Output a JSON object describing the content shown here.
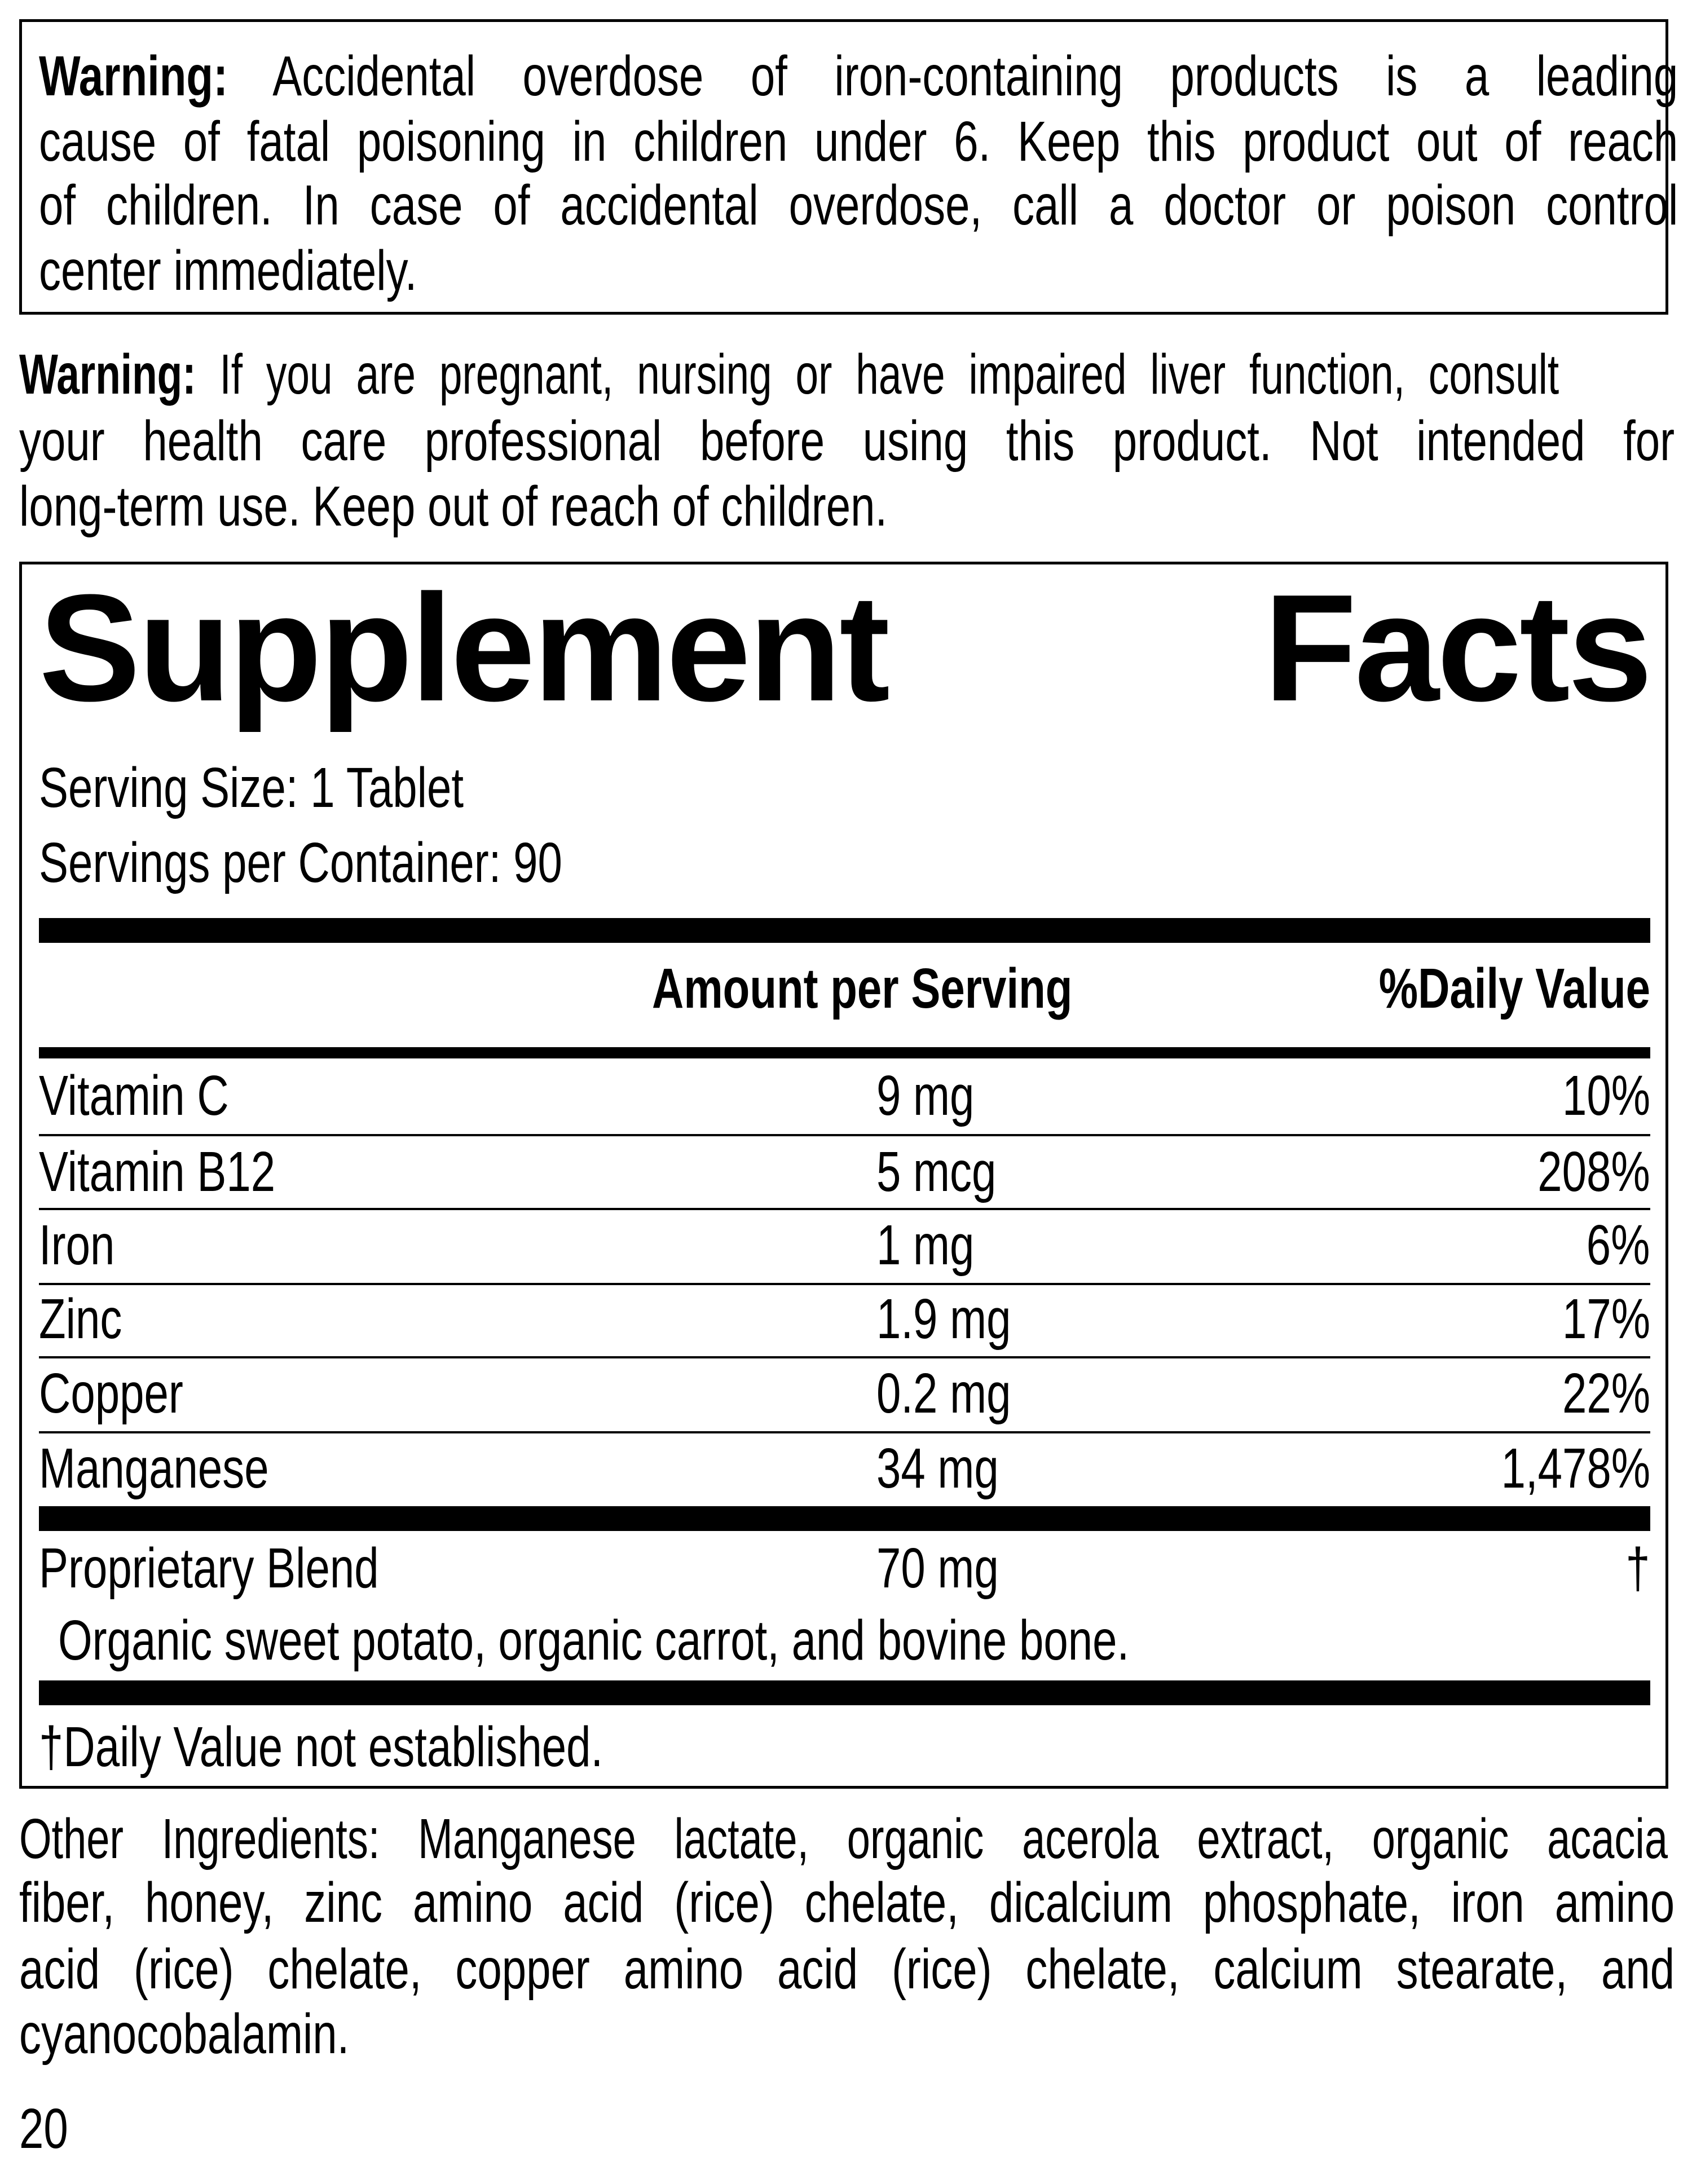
{
  "warning1": {
    "label": "Warning:",
    "lines": [
      "Accidental overdose of iron-containing products is a leading",
      "cause of fatal poisoning in children under 6. Keep this product out of reach",
      "of children. In case of accidental overdose, call a doctor or poison control",
      "center immediately."
    ]
  },
  "warning2": {
    "label": "Warning:",
    "lines": [
      "If you are pregnant, nursing or have impaired liver function, consult",
      "your health care professional before using this product. Not intended for",
      "long-term use. Keep out of reach of children."
    ]
  },
  "facts": {
    "title_word1": "Supplement",
    "title_word2": "Facts",
    "serving_size": "Serving Size: 1 Tablet",
    "servings_per_container": "Servings per Container: 90",
    "header_amount": "Amount per Serving",
    "header_dv": "%Daily Value",
    "rows": [
      {
        "name": "Vitamin C",
        "amount": "9 mg",
        "dv": "10%"
      },
      {
        "name": "Vitamin B12",
        "amount": "5 mcg",
        "dv": "208%"
      },
      {
        "name": "Iron",
        "amount": "1 mg",
        "dv": "6%"
      },
      {
        "name": "Zinc",
        "amount": "1.9 mg",
        "dv": "17%"
      },
      {
        "name": "Copper",
        "amount": "0.2 mg",
        "dv": "22%"
      },
      {
        "name": "Manganese",
        "amount": "34 mg",
        "dv": "1,478%"
      }
    ],
    "blend": {
      "name": "Proprietary Blend",
      "amount": "70 mg",
      "dv": "†",
      "contents": "Organic sweet potato, organic carrot, and bovine bone."
    },
    "footnote": "†Daily Value not established."
  },
  "other_ingredients": {
    "lines": [
      "Other Ingredients: Manganese lactate, organic acerola extract, organic acacia",
      "fiber, honey, zinc amino acid (rice) chelate,  dicalcium phosphate, iron amino",
      "acid (rice) chelate, copper amino acid (rice) chelate, calcium stearate, and",
      "cyanocobalamin."
    ]
  },
  "page_number": "20"
}
